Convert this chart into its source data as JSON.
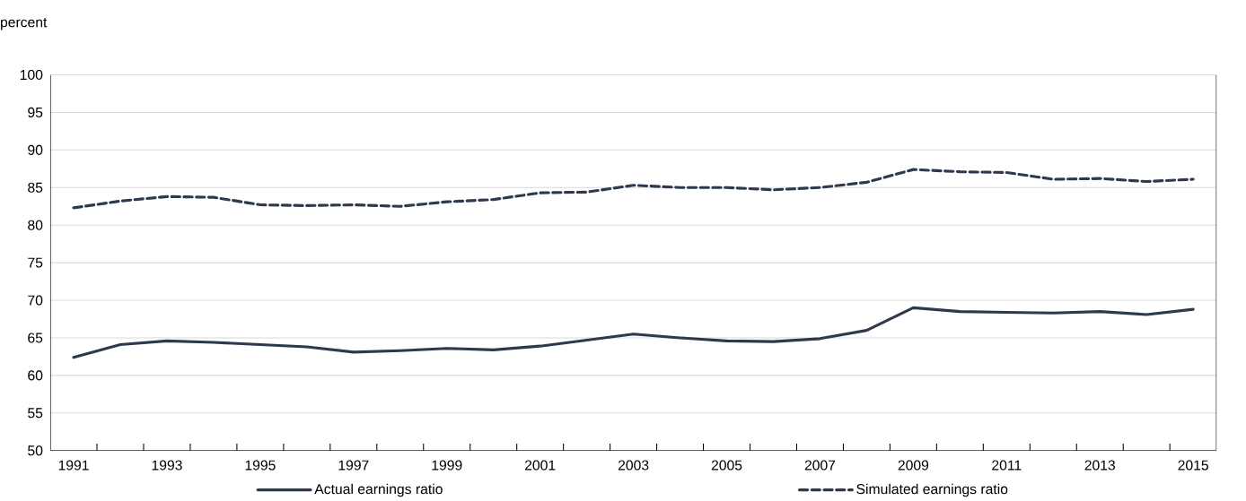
{
  "chart_data": {
    "type": "line",
    "ylabel": "percent",
    "categories": [
      "1991",
      null,
      "1993",
      null,
      "1995",
      null,
      "1997",
      null,
      "1999",
      null,
      "2001",
      null,
      "2003",
      null,
      "2005",
      null,
      "2007",
      null,
      "2009",
      null,
      "2011",
      null,
      "2013",
      null,
      "2015"
    ],
    "series": [
      {
        "name": "Actual earnings ratio",
        "color": "#2d3a4b",
        "line_style": "solid",
        "values": [
          62.4,
          64.1,
          64.6,
          64.4,
          64.1,
          63.8,
          63.1,
          63.3,
          63.6,
          63.4,
          63.9,
          64.7,
          65.5,
          65.0,
          64.6,
          64.5,
          64.9,
          66.0,
          69.0,
          68.5,
          68.4,
          68.3,
          68.5,
          68.1,
          68.8
        ]
      },
      {
        "name": "Simulated earnings ratio",
        "color": "#2d3a4b",
        "line_style": "dashed",
        "values": [
          82.3,
          83.2,
          83.8,
          83.7,
          82.7,
          82.6,
          82.7,
          82.5,
          83.1,
          83.4,
          84.3,
          84.4,
          85.3,
          85.0,
          85.0,
          84.7,
          85.0,
          85.7,
          87.4,
          87.1,
          87.0,
          86.1,
          86.2,
          85.8,
          86.1
        ]
      }
    ],
    "ylim": [
      50,
      100
    ],
    "yticks": [
      50,
      55,
      60,
      65,
      70,
      75,
      80,
      85,
      90,
      95,
      100
    ],
    "grid": "y",
    "legend": "bottom",
    "marker": "none"
  }
}
